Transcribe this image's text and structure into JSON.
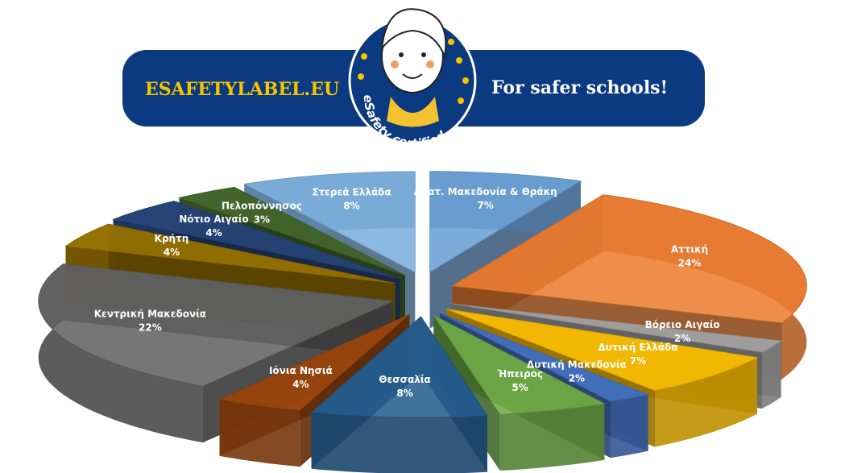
{
  "banner": {
    "site": "ESAFETYLABEL.EU",
    "tagline": "For safer schools!",
    "badge": "eSafety certified"
  },
  "chart_data": {
    "type": "pie",
    "categories": [
      "Ανατ. Μακεδονία & Θράκη",
      "Αττική",
      "Βόρειο Αιγαίο",
      "Δυτική Ελλάδα",
      "Δυτική Μακεδονία",
      "Ήπειρος",
      "Θεσσαλία",
      "Ιόνια Νησιά",
      "Κεντρική Μακεδονία",
      "Κρήτη",
      "Νότιο Αιγαίο",
      "Πελοπόννησος",
      "Στερεά Ελλάδα"
    ],
    "values": [
      7,
      24,
      2,
      7,
      2,
      5,
      8,
      4,
      22,
      4,
      4,
      3,
      8
    ],
    "value_labels": [
      "7%",
      "24%",
      "2%",
      "7%",
      "2%",
      "5%",
      "8%",
      "4%",
      "22%",
      "4%",
      "4%",
      "3%",
      "8%"
    ],
    "colors": [
      "#6a9fd4",
      "#ed7d31",
      "#a5a5a5",
      "#ffc000",
      "#4472c4",
      "#70ad47",
      "#255e91",
      "#9e480e",
      "#636363",
      "#997300",
      "#264478",
      "#43682b",
      "#7cafdd"
    ]
  }
}
